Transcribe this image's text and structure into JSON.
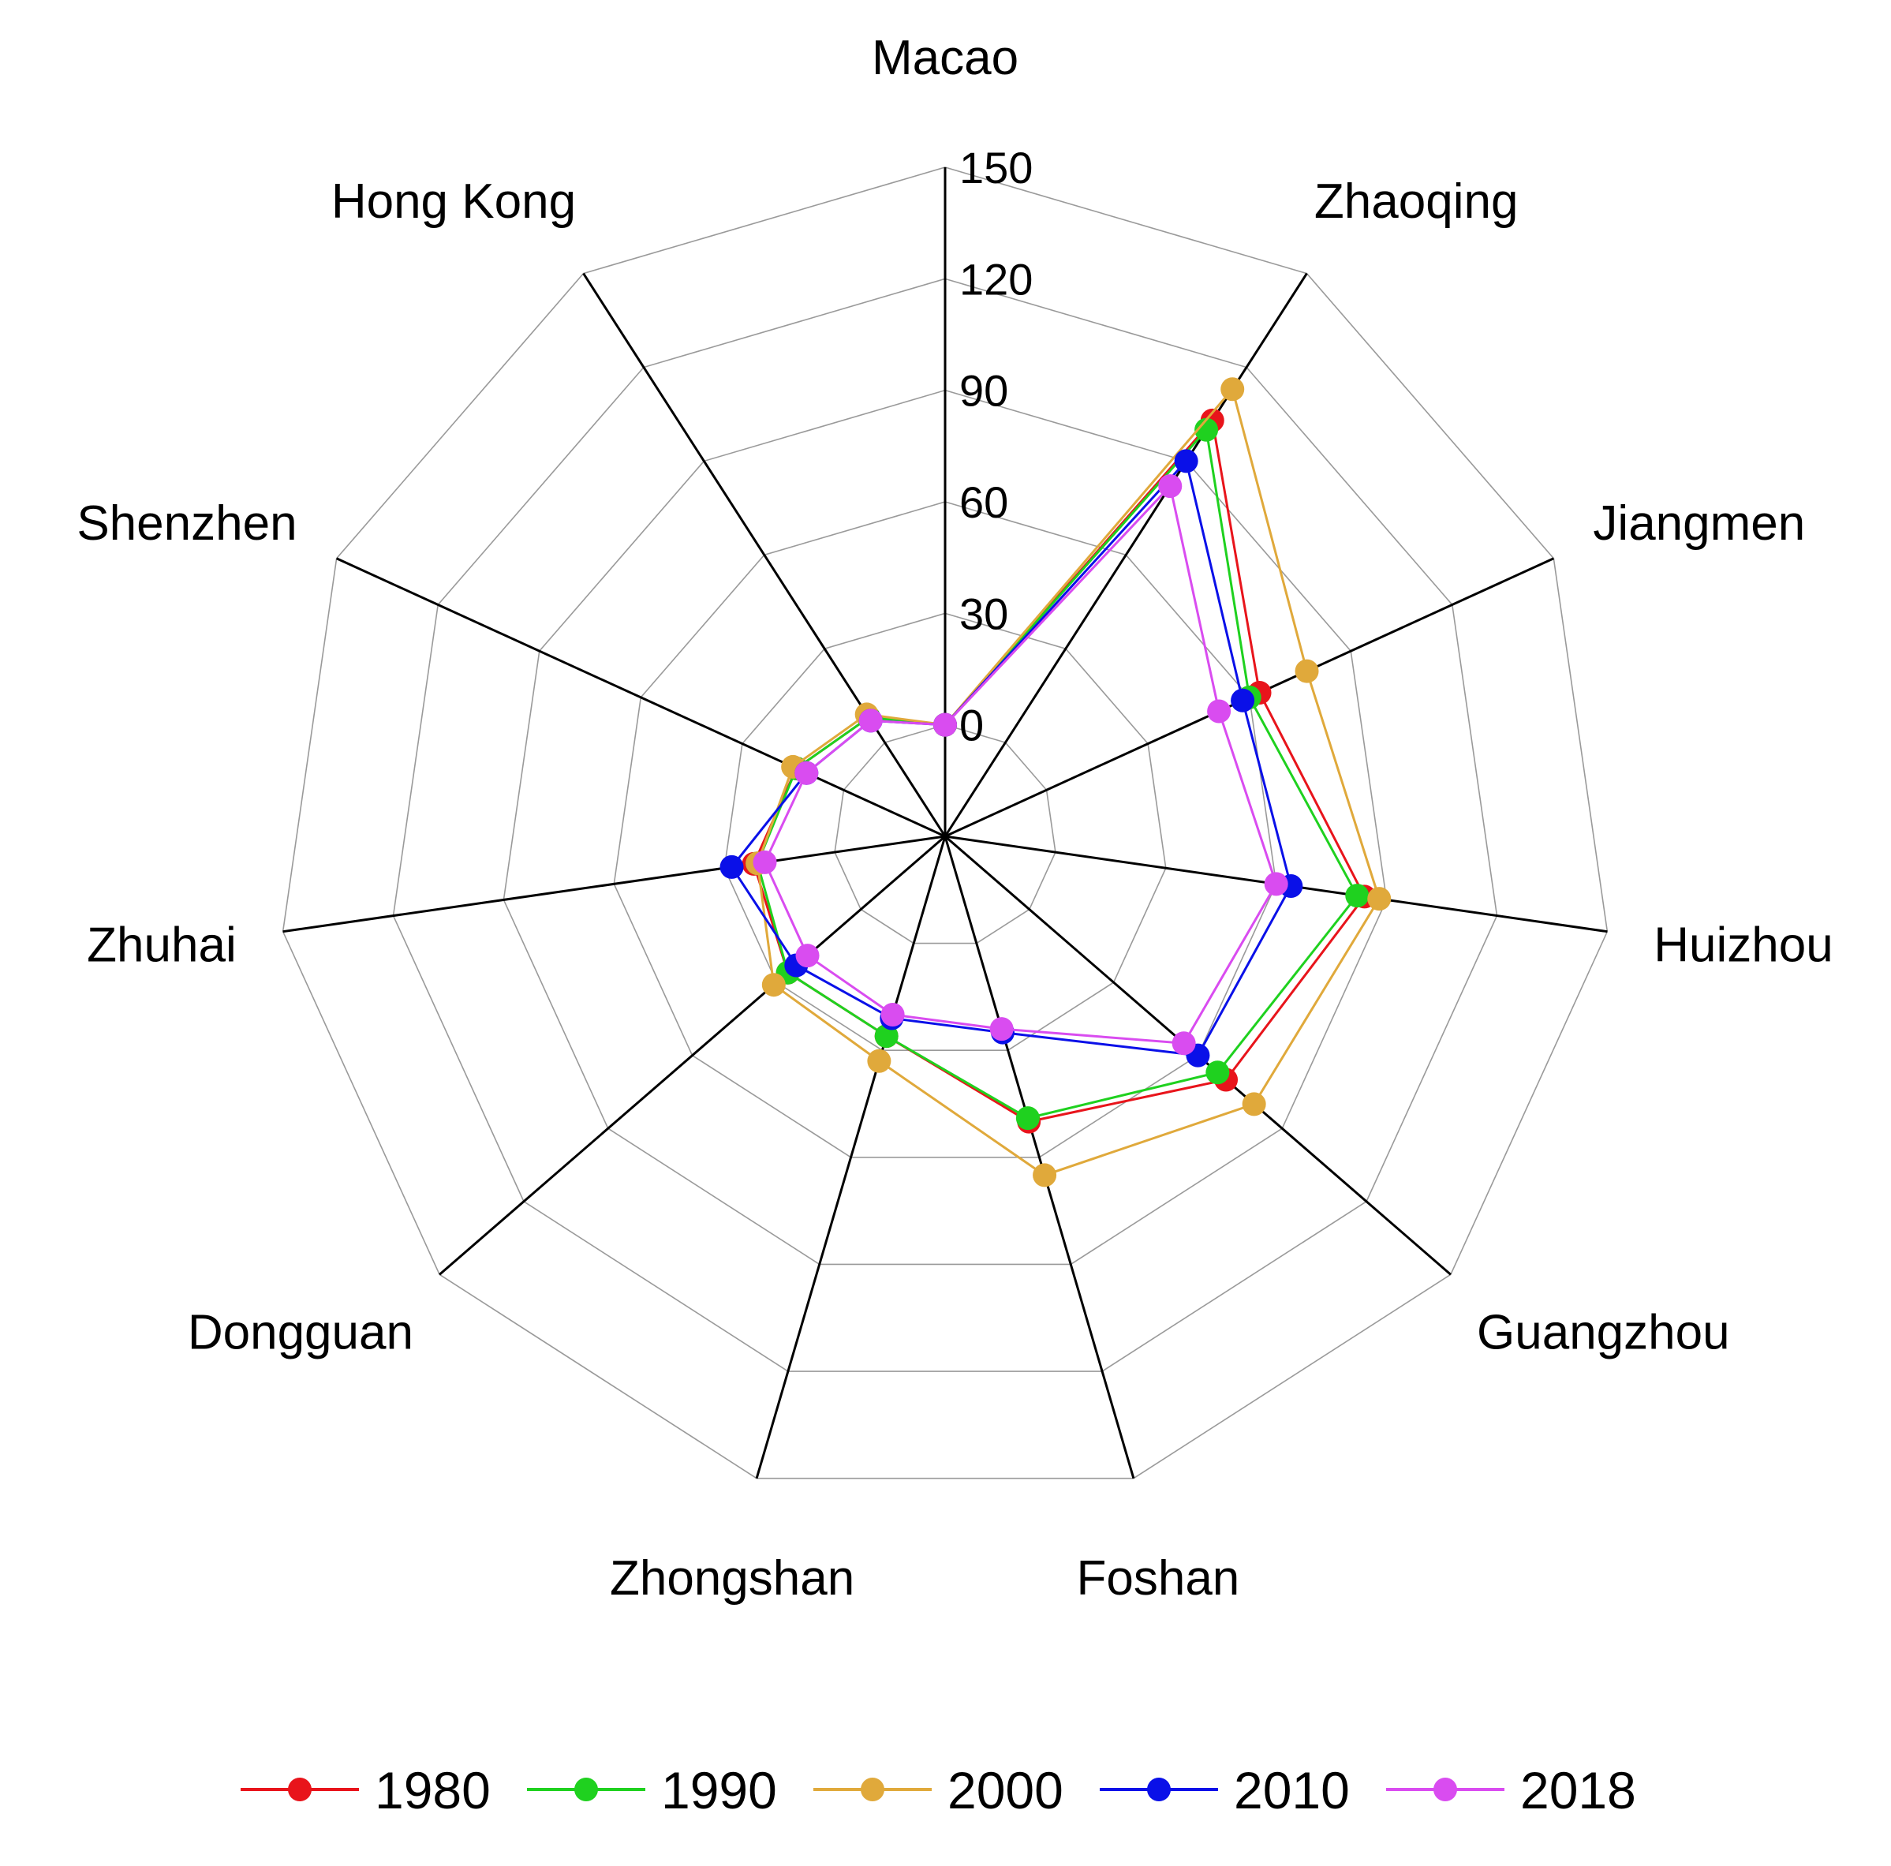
{
  "chart_data": {
    "type": "radar",
    "title": "",
    "categories": [
      "Macao",
      "Zhaoqing",
      "Jiangmen",
      "Huizhou",
      "Guangzhou",
      "Foshan",
      "Zhongshan",
      "Dongguan",
      "Zhuhai",
      "Shenzhen",
      "Hong Kong"
    ],
    "ticks": [
      "0",
      "30",
      "60",
      "90",
      "120",
      "150"
    ],
    "rlim": [
      -30,
      150
    ],
    "grid": true,
    "legend_position": "bottom",
    "series": [
      {
        "name": "1980",
        "color": "#e8141b",
        "values": [
          0,
          103,
          63,
          84,
          70,
          50,
          26,
          26,
          22,
          14,
          8
        ]
      },
      {
        "name": "1990",
        "color": "#1fd11f",
        "values": [
          0,
          100,
          60,
          82,
          67,
          49,
          26,
          26,
          21,
          14,
          8
        ]
      },
      {
        "name": "2000",
        "color": "#e0a93b",
        "values": [
          0,
          113,
          77,
          88,
          80,
          65,
          33,
          31,
          21,
          15,
          9
        ]
      },
      {
        "name": "2010",
        "color": "#0a10e8",
        "values": [
          0,
          90,
          58,
          64,
          60,
          25,
          21,
          23,
          28,
          11,
          7
        ]
      },
      {
        "name": "2018",
        "color": "#d94cf0",
        "values": [
          0,
          82,
          51,
          60,
          55,
          24,
          20,
          19,
          19,
          11,
          7
        ]
      }
    ]
  }
}
